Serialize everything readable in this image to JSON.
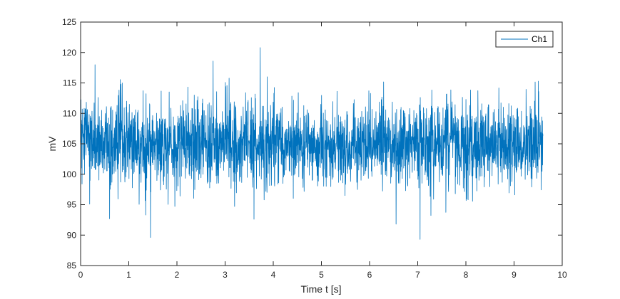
{
  "chart_data": {
    "type": "line",
    "xlabel": "Time t [s]",
    "ylabel": "mV",
    "xlim": [
      0,
      10
    ],
    "ylim": [
      85,
      125
    ],
    "xticks": [
      0,
      1,
      2,
      3,
      4,
      5,
      6,
      7,
      8,
      9,
      10
    ],
    "yticks": [
      85,
      90,
      95,
      100,
      105,
      110,
      115,
      120,
      125
    ],
    "grid": false,
    "legend_position": "top-right",
    "series": [
      {
        "name": "Ch1",
        "color": "#0072bd",
        "x_start": 0,
        "x_end": 9.6,
        "mean": 105,
        "range_observed": [
          89.4,
          120.8
        ],
        "notable_points": [
          {
            "x": 0.3,
            "y": 118
          },
          {
            "x": 1.45,
            "y": 89.6
          },
          {
            "x": 2.75,
            "y": 118.6
          },
          {
            "x": 3.73,
            "y": 120.8
          },
          {
            "x": 7.05,
            "y": 89.3
          },
          {
            "x": 3.6,
            "y": 92.6
          },
          {
            "x": 6.55,
            "y": 91.8
          },
          {
            "x": 1.35,
            "y": 93.3
          }
        ]
      }
    ]
  }
}
